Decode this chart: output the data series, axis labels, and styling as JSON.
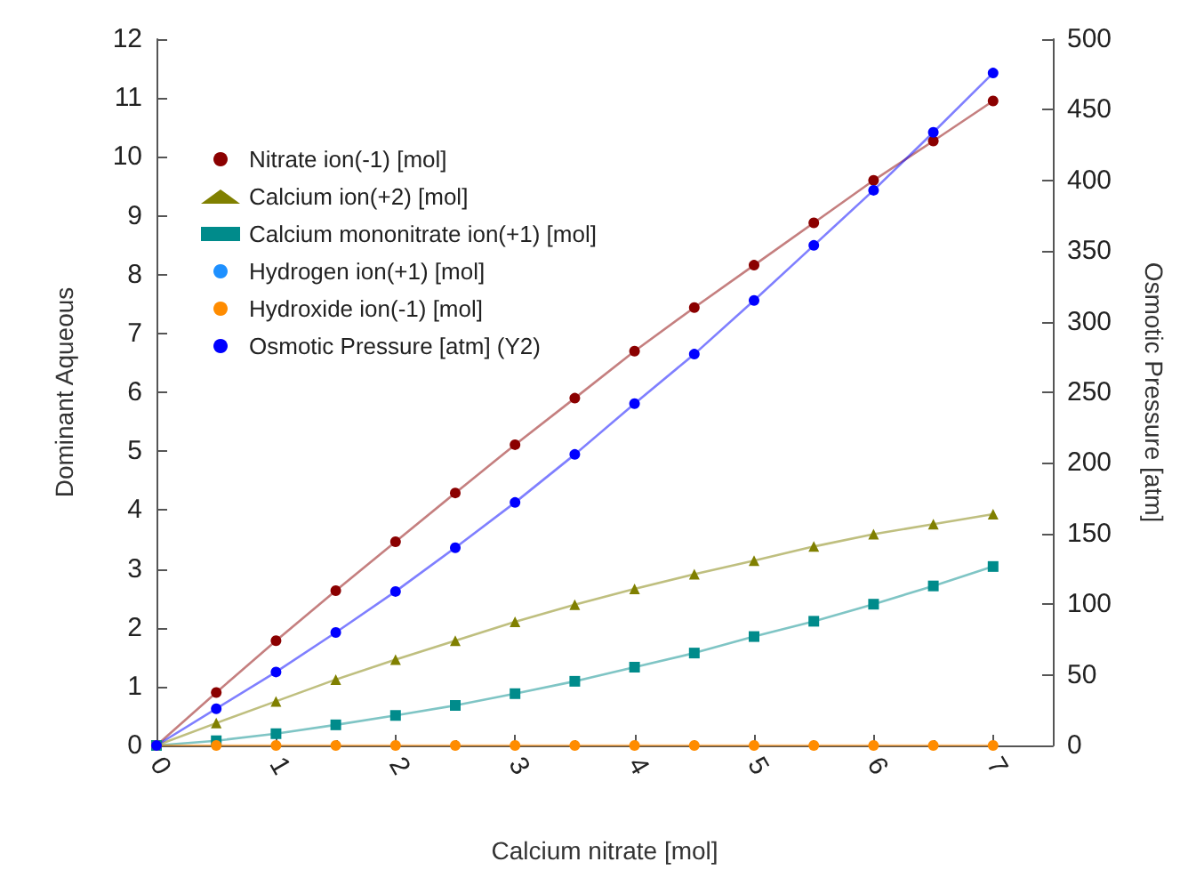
{
  "chart_data": {
    "type": "line",
    "xlabel": "Calcium nitrate [mol]",
    "ylabel": "Dominant Aqueous",
    "y2label": "Osmotic Pressure [atm]",
    "x": [
      0,
      0.5,
      1,
      1.5,
      2,
      2.5,
      3,
      3.5,
      4,
      4.5,
      5,
      5.5,
      6,
      6.5,
      7
    ],
    "xlim": [
      0,
      7.5
    ],
    "xticks": [
      0,
      1,
      2,
      3,
      4,
      5,
      6,
      7
    ],
    "ylim": [
      0,
      12
    ],
    "yticks": [
      0,
      1,
      2,
      3,
      4,
      5,
      6,
      7,
      8,
      9,
      10,
      11,
      12
    ],
    "y2lim": [
      0,
      500
    ],
    "y2ticks": [
      0,
      50,
      100,
      150,
      200,
      250,
      300,
      350,
      400,
      450,
      500
    ],
    "grid": false,
    "legend": "top left",
    "line_style": "solid",
    "series": [
      {
        "name": "Nitrate ion(-1) [mol]",
        "color": "#8b0000",
        "marker": "circle",
        "values": [
          0,
          0.9,
          1.78,
          2.63,
          3.46,
          4.29,
          5.11,
          5.9,
          6.7,
          7.44,
          8.16,
          8.88,
          9.6,
          10.27,
          10.95
        ]
      },
      {
        "name": "Calcium ion(+2) [mol]",
        "color": "#808000",
        "marker": "triangle",
        "values": [
          0,
          0.38,
          0.75,
          1.12,
          1.46,
          1.78,
          2.1,
          2.39,
          2.66,
          2.91,
          3.14,
          3.38,
          3.59,
          3.76,
          3.93
        ]
      },
      {
        "name": "Calcium mononitrate ion(+1) [mol]",
        "color": "#008b8b",
        "marker": "square",
        "values": [
          0,
          0.08,
          0.2,
          0.35,
          0.51,
          0.68,
          0.88,
          1.09,
          1.33,
          1.57,
          1.85,
          2.11,
          2.4,
          2.71,
          3.04
        ]
      },
      {
        "name": "Hydrogen ion(+1) [mol]",
        "color": "#1e90ff",
        "marker": "circle",
        "values": [
          null,
          null,
          null,
          null,
          null,
          null,
          null,
          null,
          null,
          null,
          null,
          null,
          null,
          null,
          null
        ]
      },
      {
        "name": "Hydroxide ion(-1) [mol]",
        "color": "#ff8c00",
        "marker": "circle",
        "values": [
          0,
          0,
          0,
          0,
          0,
          0,
          0,
          0,
          0,
          0,
          0,
          0,
          0,
          0,
          0
        ]
      },
      {
        "name": "Osmotic Pressure [atm] (Y2)",
        "color": "#0000ff",
        "marker": "circle",
        "axis": "y2",
        "values": [
          0,
          26,
          52,
          80,
          109,
          140,
          172,
          206,
          242,
          277,
          315,
          354,
          393,
          434,
          476
        ]
      }
    ]
  }
}
